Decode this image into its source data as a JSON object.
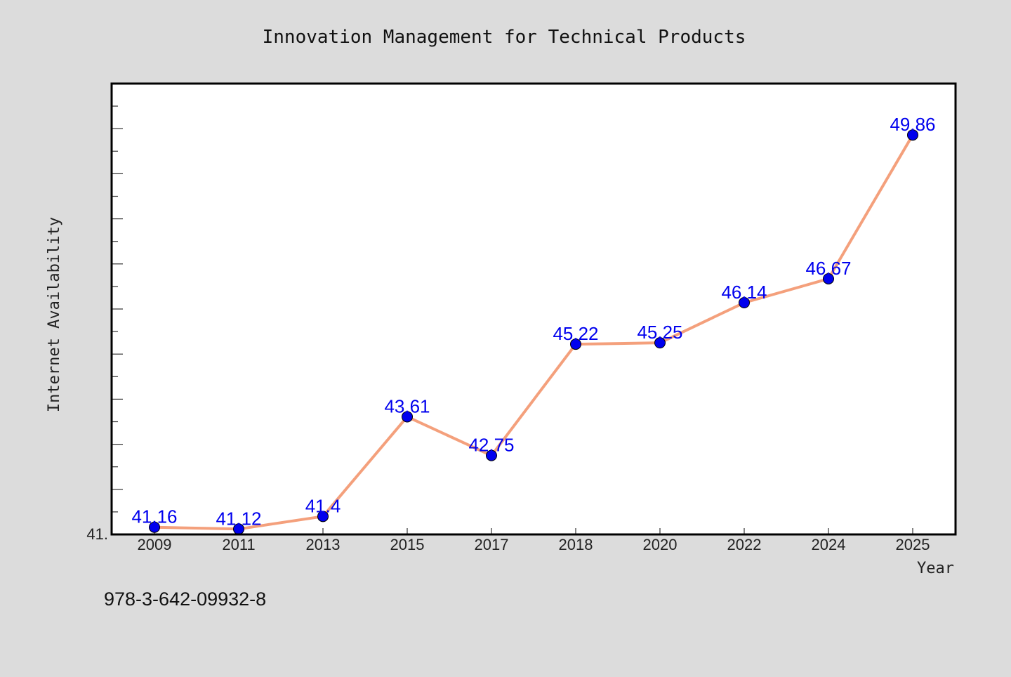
{
  "page": {
    "background": "#dcdcdc",
    "footer_text": "978-3-642-09932-8"
  },
  "chart_data": {
    "type": "line",
    "title": "Innovation Management for Technical Products",
    "xlabel": "Year",
    "ylabel": "Internet Availability",
    "categories": [
      "2009",
      "2011",
      "2013",
      "2015",
      "2017",
      "2018",
      "2020",
      "2022",
      "2024",
      "2025"
    ],
    "series": [
      {
        "values": [
          41.16,
          41.12,
          41.4,
          43.61,
          42.75,
          45.22,
          45.25,
          46.14,
          46.67,
          49.86
        ],
        "data_labels": [
          "41.16",
          "41.12",
          "41.4",
          "43.61",
          "42.75",
          "45.22",
          "45.25",
          "46.14",
          "46.67",
          "49.86"
        ],
        "line_color": "#f4a07c",
        "marker_color": "#0000ee",
        "label_color": "#0000ee"
      }
    ],
    "ylim": [
      41.0,
      51.0
    ],
    "y_tick_labels": [
      "41."
    ],
    "grid": false,
    "legend": "none",
    "plot_background": "#ffffff",
    "frame_color": "#000000"
  }
}
